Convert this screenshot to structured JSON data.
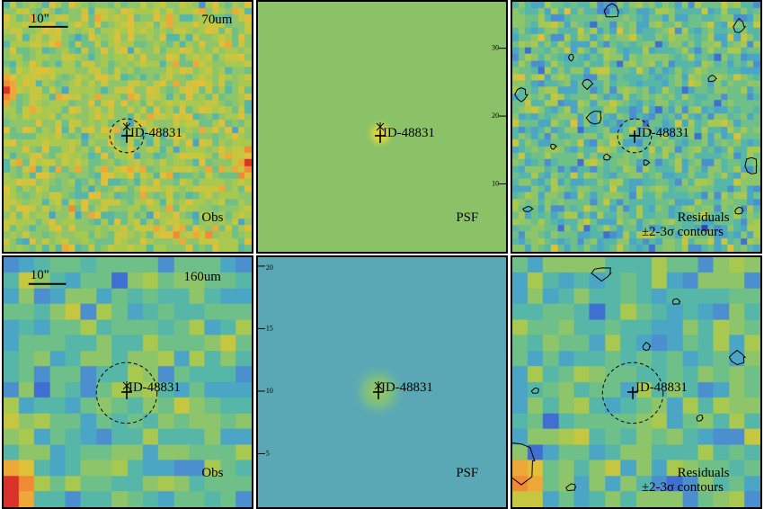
{
  "source_id": "ID-48831",
  "scale_bar_label": "10\"",
  "rows": [
    {
      "band": "70um",
      "obs_label": "Obs",
      "psf_label": "PSF",
      "residual_label": "Residuals",
      "contour_label": "±2-3σ contours",
      "psf_axis_ticks": [
        "10",
        "20",
        "30"
      ]
    },
    {
      "band": "160um",
      "obs_label": "Obs",
      "psf_label": "PSF",
      "residual_label": "Residuals",
      "contour_label": "±2-3σ contours",
      "psf_axis_ticks": [
        "5",
        "10",
        "15",
        "20"
      ]
    }
  ],
  "colors": {
    "psf_background_70um": "#8bc267",
    "psf_background_160um": "#5aa8b6",
    "border": "#000000"
  }
}
